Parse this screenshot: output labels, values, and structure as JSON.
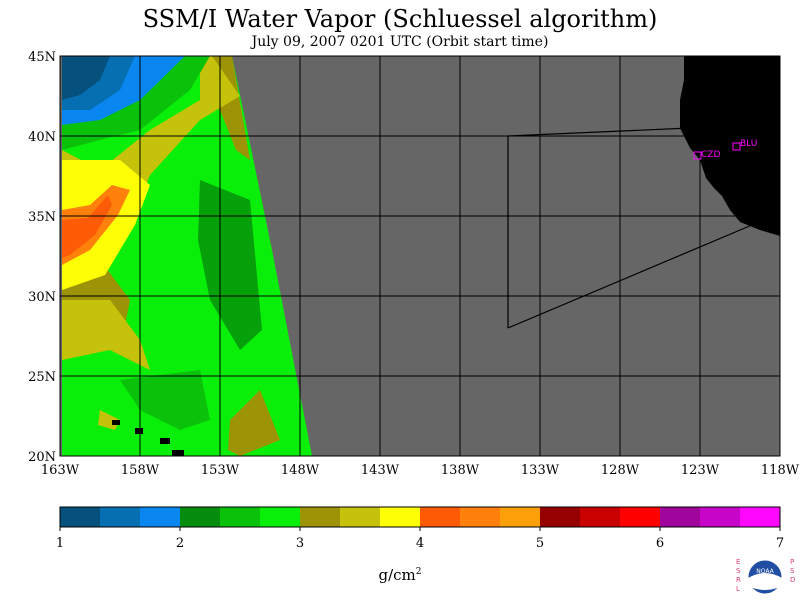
{
  "title": "SSM/I Water Vapor (Schluessel algorithm)",
  "subtitle": "July 09, 2007  0201 UTC  (Orbit start time)",
  "map": {
    "lat_labels": [
      "45N",
      "40N",
      "35N",
      "30N",
      "25N",
      "20N"
    ],
    "lon_labels": [
      "163W",
      "158W",
      "153W",
      "148W",
      "143W",
      "138W",
      "133W",
      "128W",
      "123W",
      "118W"
    ],
    "stations": [
      {
        "name": "BLU"
      },
      {
        "name": "CZD"
      }
    ],
    "colors": {
      "no_data": "#666666",
      "land": "#000000",
      "grid": "#000000",
      "station": "#ff00ff"
    }
  },
  "legend": {
    "ticks": [
      "1",
      "2",
      "3",
      "4",
      "5",
      "6",
      "7"
    ],
    "units_label": "g/cm",
    "units_exp": "2",
    "colors": [
      "#06507e",
      "#066fb2",
      "#0a86f0",
      "#068c0f",
      "#0ac20a",
      "#0aef0a",
      "#9c9406",
      "#c5c20b",
      "#fefe07",
      "#fe5b07",
      "#ff800a",
      "#fca00a",
      "#960000",
      "#c80000",
      "#ff0000",
      "#a0069c",
      "#c806c8",
      "#ff06ff"
    ]
  },
  "logo": {
    "left_letters": "ESRL",
    "right_letters": "PSD",
    "center_text": "NOAA"
  }
}
